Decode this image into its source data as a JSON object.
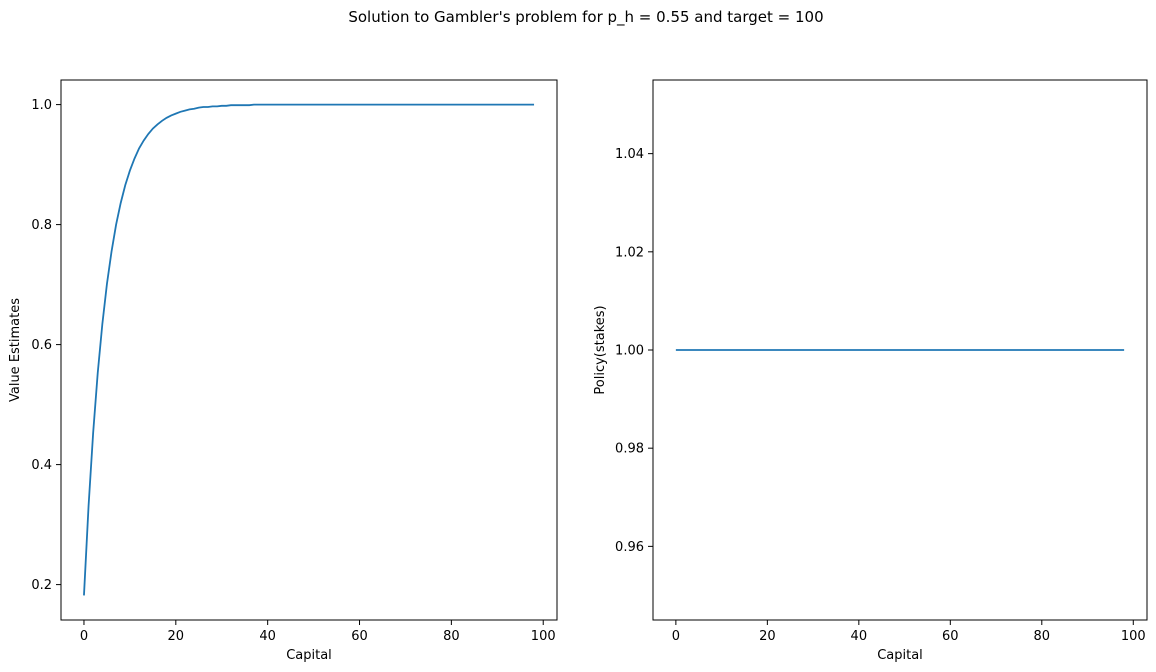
{
  "figure": {
    "suptitle": "Solution to Gambler's problem for p_h = 0.55 and target = 100"
  },
  "chart_data": [
    {
      "type": "line",
      "title": "",
      "xlabel": "Capital",
      "ylabel": "Value Estimates",
      "xlim": [
        -5,
        103
      ],
      "ylim": [
        0.141,
        1.041
      ],
      "xticks": [
        0,
        20,
        40,
        60,
        80,
        100
      ],
      "xtick_labels": [
        "0",
        "20",
        "40",
        "60",
        "80",
        "100"
      ],
      "yticks": [
        0.2,
        0.4,
        0.6,
        0.8,
        1.0
      ],
      "ytick_labels": [
        "0.2",
        "0.4",
        "0.6",
        "0.8",
        "1.0"
      ],
      "grid": false,
      "legend": "none",
      "series": [
        {
          "color": "#1f77b4",
          "x": [
            0,
            1,
            2,
            3,
            4,
            5,
            6,
            7,
            8,
            9,
            10,
            11,
            12,
            13,
            14,
            15,
            16,
            17,
            18,
            19,
            20,
            21,
            22,
            23,
            24,
            25,
            26,
            27,
            28,
            29,
            30,
            31,
            32,
            33,
            34,
            35,
            36,
            37,
            38,
            39,
            40,
            41,
            42,
            43,
            44,
            45,
            46,
            47,
            48,
            49,
            50,
            51,
            52,
            53,
            54,
            55,
            56,
            57,
            58,
            59,
            60,
            61,
            62,
            63,
            64,
            65,
            66,
            67,
            68,
            69,
            70,
            71,
            72,
            73,
            74,
            75,
            76,
            77,
            78,
            79,
            80,
            81,
            82,
            83,
            84,
            85,
            86,
            87,
            88,
            89,
            90,
            91,
            92,
            93,
            94,
            95,
            96,
            97,
            98
          ],
          "y": [
            0.182,
            0.331,
            0.453,
            0.553,
            0.634,
            0.701,
            0.755,
            0.8,
            0.836,
            0.866,
            0.89,
            0.91,
            0.927,
            0.94,
            0.951,
            0.96,
            0.967,
            0.973,
            0.978,
            0.982,
            0.985,
            0.988,
            0.99,
            0.992,
            0.993,
            0.995,
            0.996,
            0.996,
            0.997,
            0.997,
            0.998,
            0.998,
            0.999,
            0.999,
            0.999,
            0.999,
            0.999,
            1.0,
            1.0,
            1.0,
            1.0,
            1.0,
            1.0,
            1.0,
            1.0,
            1.0,
            1.0,
            1.0,
            1.0,
            1.0,
            1.0,
            1.0,
            1.0,
            1.0,
            1.0,
            1.0,
            1.0,
            1.0,
            1.0,
            1.0,
            1.0,
            1.0,
            1.0,
            1.0,
            1.0,
            1.0,
            1.0,
            1.0,
            1.0,
            1.0,
            1.0,
            1.0,
            1.0,
            1.0,
            1.0,
            1.0,
            1.0,
            1.0,
            1.0,
            1.0,
            1.0,
            1.0,
            1.0,
            1.0,
            1.0,
            1.0,
            1.0,
            1.0,
            1.0,
            1.0,
            1.0,
            1.0,
            1.0,
            1.0,
            1.0,
            1.0,
            1.0,
            1.0,
            1.0
          ]
        }
      ]
    },
    {
      "type": "line",
      "title": "",
      "xlabel": "Capital",
      "ylabel": "Policy(stakes)",
      "xlim": [
        -5,
        103
      ],
      "ylim": [
        0.945,
        1.055
      ],
      "xticks": [
        0,
        20,
        40,
        60,
        80,
        100
      ],
      "xtick_labels": [
        "0",
        "20",
        "40",
        "60",
        "80",
        "100"
      ],
      "yticks": [
        0.96,
        0.98,
        1.0,
        1.02,
        1.04
      ],
      "ytick_labels": [
        "0.96",
        "0.98",
        "1.00",
        "1.02",
        "1.04"
      ],
      "grid": false,
      "legend": "none",
      "series": [
        {
          "color": "#1f77b4",
          "x": [
            0,
            98
          ],
          "y": [
            1,
            1
          ]
        }
      ]
    }
  ]
}
